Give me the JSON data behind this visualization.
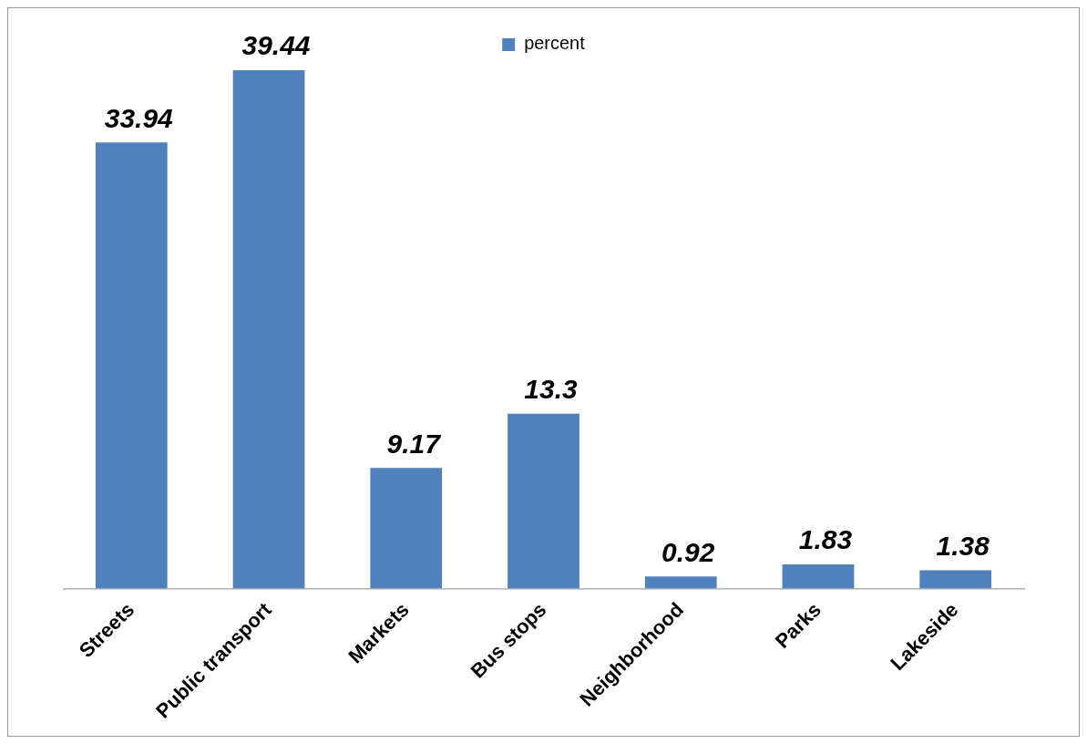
{
  "chart_data": {
    "type": "bar",
    "categories": [
      "Streets",
      "Public transport",
      "Markets",
      "Bus stops",
      "Neighborhood",
      "Parks",
      "Lakeside"
    ],
    "series": [
      {
        "name": "percent",
        "color": "#4f81bd",
        "values": [
          33.94,
          39.44,
          9.17,
          13.3,
          0.92,
          1.83,
          1.38
        ]
      }
    ],
    "data_labels": true,
    "legend": "top",
    "grid": false,
    "tick_labels": "x"
  }
}
